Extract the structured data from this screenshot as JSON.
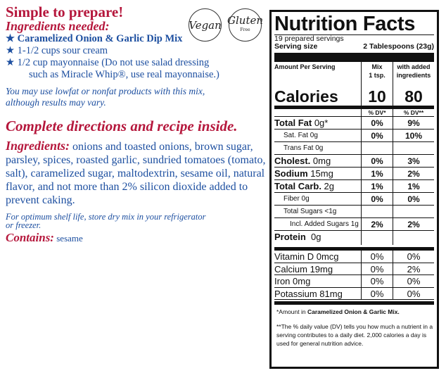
{
  "left": {
    "headline": "Simple to prepare!",
    "ingredients_needed": "Ingredients needed:",
    "items": [
      "★ Caramelized Onion & Garlic Dip Mix",
      "★ 1-1/2 cups sour cream",
      "★ 1/2 cup mayonnaise (Do not use salad dressing",
      "such as Miracle Whip®, use real mayonnaise.)"
    ],
    "lowfat_note_1": "You may use lowfat or nonfat products with this mix,",
    "lowfat_note_2": "although results may vary.",
    "directions": "Complete directions and recipe inside.",
    "ingredients_label": "Ingredients:",
    "ingredients_text": " onions and toasted onions, brown sugar, parsley, spices, roasted garlic, sundried tomatoes (tomato, salt), caramelized sugar, maltodextrin, sesame oil, natural flavor, and not more than 2% silicon dioxide added to prevent caking.",
    "shelf_1": "For optimum shelf life, store dry mix in your refrigerator",
    "shelf_2": "or freezer.",
    "contains_label": "Contains:",
    "contains_value": " sesame",
    "badges": {
      "vegan": "Vegan",
      "gluten": "Gluten",
      "free": "Free"
    }
  },
  "nutrition": {
    "title": "Nutrition Facts",
    "servings": "19 prepared servings",
    "serving_size_label": "Serving size",
    "serving_size_value": "2 Tablespoons (23g)",
    "amount_per_serving": "Amount Per Serving",
    "col1_header": "Mix",
    "col1_sub": "1 tsp.",
    "col2_header": "with added",
    "col2_sub": "ingredients",
    "calories_label": "Calories",
    "calories_mix": "10",
    "calories_added": "80",
    "dv1": "% DV*",
    "dv2": "% DV**",
    "rows": [
      {
        "label": "Total Fat",
        "amount": " 0g*",
        "mix": "0%",
        "added": "9%"
      },
      {
        "label": "Sat. Fat 0g",
        "amount": "",
        "mix": "0%",
        "added": "10%"
      },
      {
        "label": "Trans Fat 0g",
        "amount": "",
        "mix": "",
        "added": ""
      },
      {
        "label": "Cholest.",
        "amount": " 0mg",
        "mix": "0%",
        "added": "3%"
      },
      {
        "label": "Sodium",
        "amount": " 15mg",
        "mix": "1%",
        "added": "2%"
      },
      {
        "label": "Total Carb.",
        "amount": " 2g",
        "mix": "1%",
        "added": "1%"
      },
      {
        "label": "Fiber 0g",
        "amount": "",
        "mix": "0%",
        "added": "0%"
      },
      {
        "label": "Total Sugars <1g",
        "amount": "",
        "mix": "",
        "added": ""
      },
      {
        "label": "Incl. Added Sugars 1g",
        "amount": "",
        "mix": "2%",
        "added": "2%"
      },
      {
        "label": "Protein",
        "amount": "  0g",
        "mix": "",
        "added": ""
      }
    ],
    "vitamins": [
      {
        "label": "Vitamin D 0mcg",
        "mix": "0%",
        "added": "0%"
      },
      {
        "label": "Calcium 19mg",
        "mix": "0%",
        "added": "2%"
      },
      {
        "label": "Iron 0mg",
        "mix": "0%",
        "added": "0%"
      },
      {
        "label": "Potassium 81mg",
        "mix": "0%",
        "added": "0%"
      }
    ],
    "footnote1_a": "*Amount in ",
    "footnote1_b": "Caramelized Onion & Garlic Mix.",
    "footnote2": "**The % daily value (DV) tells you how much a nutrient in a serving contributes to a daily diet. 2,000 calories a day is used for general nutrition advice."
  }
}
